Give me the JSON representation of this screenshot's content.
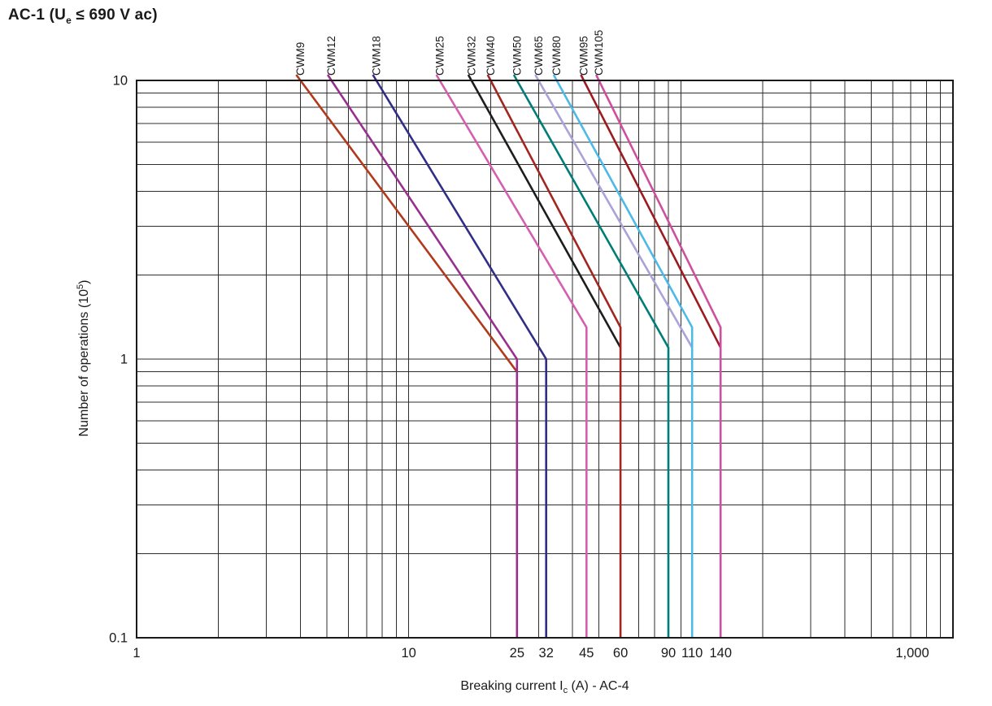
{
  "title": {
    "prefix": "AC-1 (U",
    "sub": "e",
    "suffix": " ≤ 690 V ac)"
  },
  "chart_data": {
    "type": "line",
    "title": "AC-1 (Ue ≤ 690 V ac)",
    "x_axis": {
      "label_prefix": "Breaking current I",
      "label_sub": "c",
      "label_suffix": " (A) - AC-4",
      "scale": "log",
      "min": 1,
      "max": 1000,
      "ticks": [
        {
          "value": 1,
          "label": "1"
        },
        {
          "value": 10,
          "label": "10"
        },
        {
          "value": 25,
          "label": "25"
        },
        {
          "value": 32,
          "label": "32"
        },
        {
          "value": 45,
          "label": "45"
        },
        {
          "value": 60,
          "label": "60"
        },
        {
          "value": 90,
          "label": "90"
        },
        {
          "value": 110,
          "label": "110"
        },
        {
          "value": 140,
          "label": "140"
        },
        {
          "value": 1000,
          "label": "1,000"
        }
      ]
    },
    "y_axis": {
      "label_prefix": "Number of operations (10",
      "label_sup": "5",
      "label_suffix": ")",
      "scale": "log",
      "min": 0.1,
      "max": 10,
      "ticks": [
        {
          "value": 10,
          "label": "10"
        },
        {
          "value": 1,
          "label": "1"
        },
        {
          "value": 0.1,
          "label": "0.1"
        }
      ]
    },
    "grid": {
      "minor": true,
      "color": "#2d2d2d",
      "frame_color": "#1a1a1a"
    },
    "series": [
      {
        "name": "CWM9",
        "color": "#b23a1c",
        "points": [
          [
            4,
            10
          ],
          [
            25,
            0.9
          ]
        ]
      },
      {
        "name": "CWM12",
        "color": "#97308f",
        "points": [
          [
            5.2,
            10
          ],
          [
            25,
            1.0
          ],
          [
            25,
            0.1
          ]
        ]
      },
      {
        "name": "CWM18",
        "color": "#312e88",
        "points": [
          [
            7.6,
            10
          ],
          [
            32,
            1.0
          ],
          [
            32,
            0.1
          ]
        ]
      },
      {
        "name": "CWM25",
        "color": "#d55fae",
        "points": [
          [
            13,
            10
          ],
          [
            45,
            1.3
          ],
          [
            45,
            0.1
          ]
        ]
      },
      {
        "name": "CWM32",
        "color": "#1d1d1d",
        "points": [
          [
            17,
            10
          ],
          [
            60,
            1.1
          ]
        ]
      },
      {
        "name": "CWM40",
        "color": "#a2251f",
        "points": [
          [
            20,
            10
          ],
          [
            60,
            1.3
          ],
          [
            60,
            0.1
          ]
        ]
      },
      {
        "name": "CWM50",
        "color": "#007d77",
        "points": [
          [
            25,
            10
          ],
          [
            90,
            1.1
          ],
          [
            90,
            0.1
          ]
        ]
      },
      {
        "name": "CWM65",
        "color": "#a9a3d8",
        "points": [
          [
            30,
            10
          ],
          [
            110,
            1.1
          ]
        ]
      },
      {
        "name": "CWM80",
        "color": "#4cb9e9",
        "points": [
          [
            35,
            10
          ],
          [
            110,
            1.3
          ],
          [
            110,
            0.1
          ]
        ]
      },
      {
        "name": "CWM95",
        "color": "#9c1b20",
        "points": [
          [
            44,
            10
          ],
          [
            140,
            1.1
          ]
        ]
      },
      {
        "name": "CWM105",
        "color": "#cf4f9f",
        "points": [
          [
            50,
            10
          ],
          [
            140,
            1.3
          ],
          [
            140,
            0.1
          ]
        ]
      }
    ]
  }
}
